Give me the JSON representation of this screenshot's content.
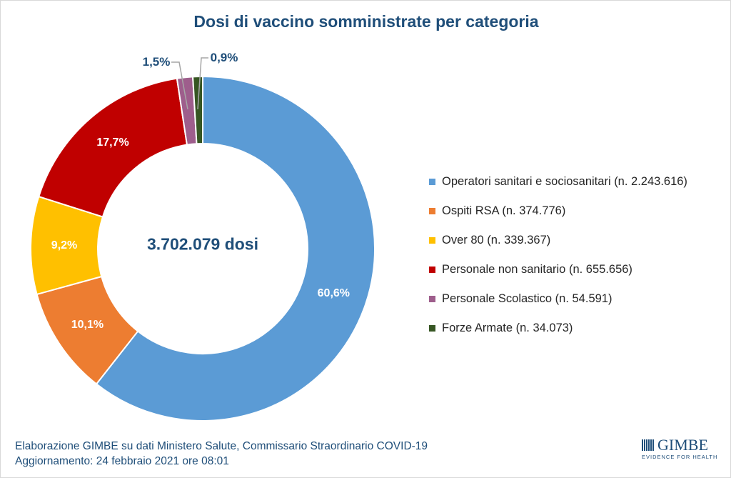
{
  "chart_data": {
    "type": "pie",
    "variant": "donut",
    "title": "Dosi di vaccino somministrate per categoria",
    "center_label": "3.702.079 dosi",
    "slices": [
      {
        "name": "Operatori sanitari e sociosanitari (n. 2.243.616)",
        "value": 2243616,
        "percent_label": "60,6%",
        "color": "#5b9bd5"
      },
      {
        "name": "Ospiti RSA (n. 374.776)",
        "value": 374776,
        "percent_label": "10,1%",
        "color": "#ed7d31"
      },
      {
        "name": "Over 80 (n. 339.367)",
        "value": 339367,
        "percent_label": "9,2%",
        "color": "#ffc000"
      },
      {
        "name": "Personale non sanitario (n. 655.656)",
        "value": 655656,
        "percent_label": "17,7%",
        "color": "#c00000"
      },
      {
        "name": "Personale Scolastico (n. 54.591)",
        "value": 54591,
        "percent_label": "1,5%",
        "color": "#9e5e8c"
      },
      {
        "name": "Forze Armate (n. 34.073)",
        "value": 34073,
        "percent_label": "0,9%",
        "color": "#375623"
      }
    ],
    "legend_position": "right"
  },
  "footer": {
    "line1": "Elaborazione GIMBE su dati Ministero Salute, Commissario Straordinario COVID-19",
    "line2": "Aggiornamento: 24 febbraio 2021 ore 08:01"
  },
  "logo": {
    "name": "GIMBE",
    "tagline": "EVIDENCE FOR HEALTH"
  }
}
